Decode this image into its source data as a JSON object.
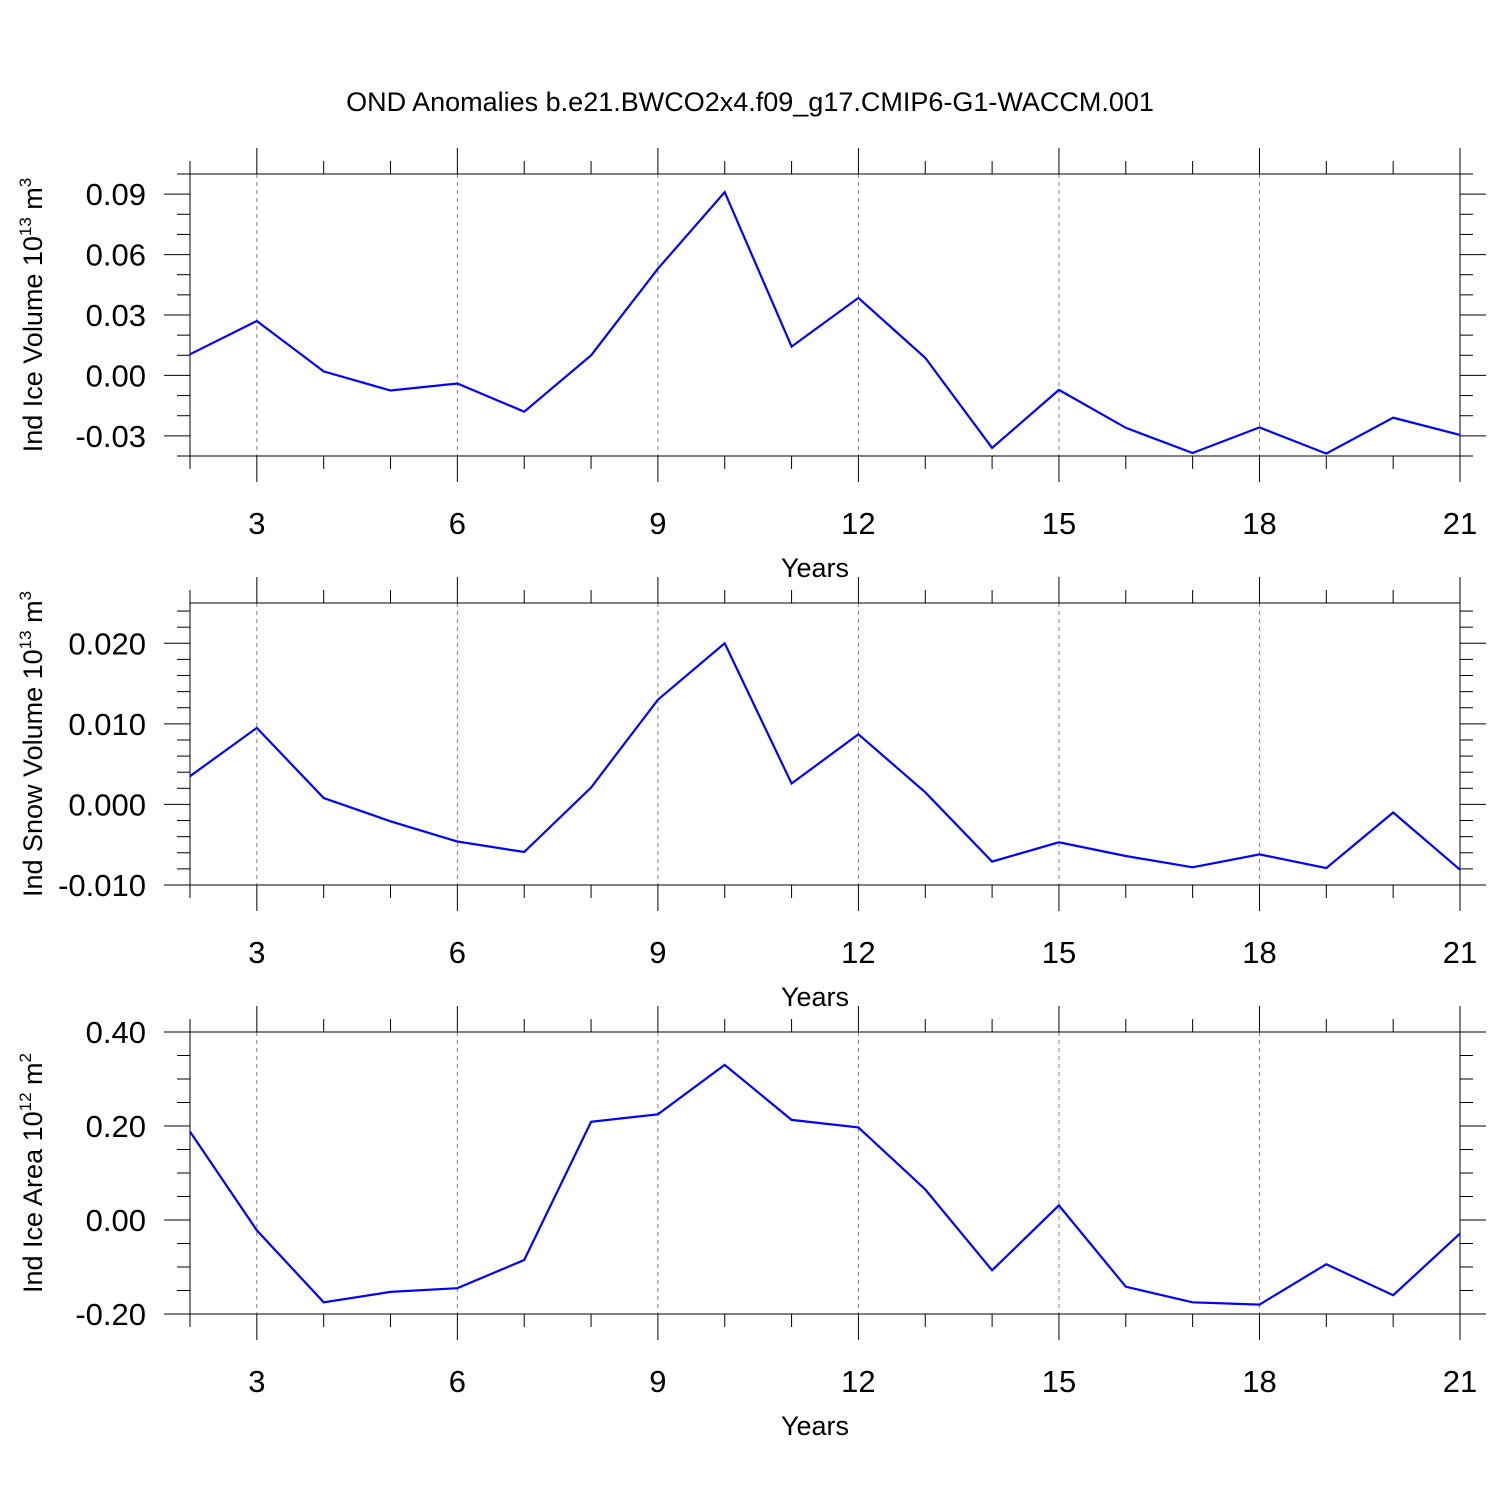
{
  "title": "OND Anomalies b.e21.BWCO2x4.f09_g17.CMIP6-G1-WACCM.001",
  "colors": {
    "line": "#0000ff",
    "grid": "#808080",
    "axis": "#000000"
  },
  "chart_data": [
    {
      "type": "line",
      "ylabel_main": "Ind Ice Volume 10",
      "ylabel_exp": "13",
      "ylabel_unit": " m",
      "ylabel_unit_exp": "3",
      "xlabel": "Years",
      "xlim": [
        2,
        21
      ],
      "ylim": [
        -0.04,
        0.1
      ],
      "x_ticks": [
        3,
        6,
        9,
        12,
        15,
        18,
        21
      ],
      "x_tick_labels": [
        "3",
        "6",
        "9",
        "12",
        "15",
        "18",
        "21"
      ],
      "y_ticks": [
        -0.03,
        0.0,
        0.03,
        0.06,
        0.09
      ],
      "y_tick_labels": [
        "-0.03",
        "0.00",
        "0.03",
        "0.06",
        "0.09"
      ],
      "y_minor_step": 0.01,
      "grid": "vertical dashed at major x ticks",
      "x": [
        2,
        3,
        4,
        5,
        6,
        7,
        8,
        9,
        10,
        11,
        12,
        13,
        14,
        15,
        16,
        17,
        18,
        19,
        20,
        21
      ],
      "values": [
        0.0105,
        0.027,
        0.002,
        -0.0075,
        -0.004,
        -0.018,
        0.01,
        0.053,
        0.091,
        0.0143,
        0.0385,
        0.0087,
        -0.036,
        -0.0072,
        -0.026,
        -0.0385,
        -0.0258,
        -0.0388,
        -0.021,
        -0.0295
      ]
    },
    {
      "type": "line",
      "ylabel_main": "Ind Snow Volume 10",
      "ylabel_exp": "13",
      "ylabel_unit": " m",
      "ylabel_unit_exp": "3",
      "xlabel": "Years",
      "xlim": [
        2,
        21
      ],
      "ylim": [
        -0.01,
        0.025
      ],
      "x_ticks": [
        3,
        6,
        9,
        12,
        15,
        18,
        21
      ],
      "x_tick_labels": [
        "3",
        "6",
        "9",
        "12",
        "15",
        "18",
        "21"
      ],
      "y_ticks": [
        -0.01,
        0.0,
        0.01,
        0.02
      ],
      "y_tick_labels": [
        "-0.010",
        "0.000",
        "0.010",
        "0.020"
      ],
      "y_minor_step": 0.002,
      "grid": "vertical dashed at major x ticks",
      "x": [
        2,
        3,
        4,
        5,
        6,
        7,
        8,
        9,
        10,
        11,
        12,
        13,
        14,
        15,
        16,
        17,
        18,
        19,
        20,
        21
      ],
      "values": [
        0.0035,
        0.0095,
        0.0008,
        -0.0021,
        -0.0046,
        -0.0059,
        0.0021,
        0.013,
        0.02,
        0.0026,
        0.0087,
        0.0015,
        -0.0071,
        -0.0047,
        -0.0064,
        -0.0078,
        -0.0062,
        -0.0079,
        -0.001,
        -0.0081
      ]
    },
    {
      "type": "line",
      "ylabel_main": "Ind Ice Area 10",
      "ylabel_exp": "12",
      "ylabel_unit": " m",
      "ylabel_unit_exp": "2",
      "xlabel": "Years",
      "xlim": [
        2,
        21
      ],
      "ylim": [
        -0.2,
        0.4
      ],
      "x_ticks": [
        3,
        6,
        9,
        12,
        15,
        18,
        21
      ],
      "x_tick_labels": [
        "3",
        "6",
        "9",
        "12",
        "15",
        "18",
        "21"
      ],
      "y_ticks": [
        -0.2,
        0.0,
        0.2,
        0.4
      ],
      "y_tick_labels": [
        "-0.20",
        "0.00",
        "0.20",
        "0.40"
      ],
      "y_minor_step": 0.05,
      "grid": "vertical dashed at major x ticks",
      "x": [
        2,
        3,
        4,
        5,
        6,
        7,
        8,
        9,
        10,
        11,
        12,
        13,
        14,
        15,
        16,
        17,
        18,
        19,
        20,
        21
      ],
      "values": [
        0.188,
        -0.022,
        -0.175,
        -0.153,
        -0.145,
        -0.085,
        0.209,
        0.225,
        0.33,
        0.213,
        0.197,
        0.065,
        -0.107,
        0.031,
        -0.142,
        -0.175,
        -0.18,
        -0.094,
        -0.16,
        -0.029
      ]
    }
  ]
}
